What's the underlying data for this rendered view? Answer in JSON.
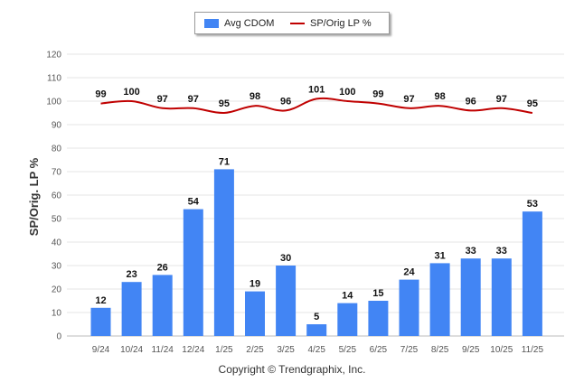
{
  "chart_data": {
    "type": "bar",
    "categories": [
      "9/24",
      "10/24",
      "11/24",
      "12/24",
      "1/25",
      "2/25",
      "3/25",
      "4/25",
      "5/25",
      "6/25",
      "7/25",
      "8/25",
      "9/25",
      "10/25",
      "11/25"
    ],
    "series": [
      {
        "name": "Avg CDOM",
        "type": "bar",
        "color": "#4285f4",
        "values": [
          12,
          23,
          26,
          54,
          71,
          19,
          30,
          5,
          14,
          15,
          24,
          31,
          33,
          33,
          53
        ]
      },
      {
        "name": "SP/Orig LP %",
        "type": "line",
        "color": "#c00000",
        "values": [
          99,
          100,
          97,
          97,
          95,
          98,
          96,
          101,
          100,
          99,
          97,
          98,
          96,
          97,
          95
        ]
      }
    ],
    "ylabel": "SP/Orig. LP %",
    "yticks": [
      0,
      10,
      20,
      30,
      40,
      50,
      60,
      70,
      80,
      90,
      100,
      110,
      120
    ],
    "ylim": [
      0,
      120
    ],
    "grid": true,
    "legend_position": "top-center"
  },
  "footer": {
    "copyright": "Copyright © Trendgraphix, Inc."
  }
}
